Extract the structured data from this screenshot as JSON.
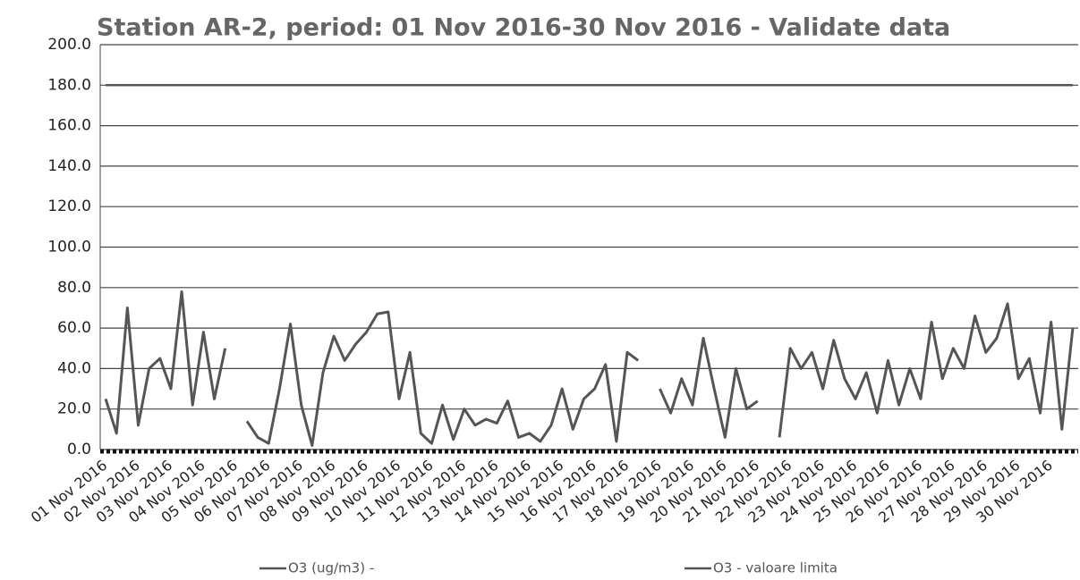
{
  "chart_data": {
    "type": "line",
    "title": "Station AR-2, period: 01 Nov 2016-30 Nov 2016 - Validate data",
    "categories": [
      "01 Nov 2016",
      null,
      null,
      "02 Nov 2016",
      null,
      null,
      "03 Nov 2016",
      null,
      null,
      "04 Nov 2016",
      null,
      null,
      "05 Nov 2016",
      null,
      null,
      "06 Nov 2016",
      null,
      null,
      "07 Nov 2016",
      null,
      null,
      "08 Nov 2016",
      null,
      null,
      "09 Nov 2016",
      null,
      null,
      "10 Nov 2016",
      null,
      null,
      "11 Nov 2016",
      null,
      null,
      "12 Nov 2016",
      null,
      null,
      "13 Nov 2016",
      null,
      null,
      "14 Nov 2016",
      null,
      null,
      "15 Nov 2016",
      null,
      null,
      "16 Nov 2016",
      null,
      null,
      "17 Nov 2016",
      null,
      null,
      "18 Nov 2016",
      null,
      null,
      "19 Nov 2016",
      null,
      null,
      "20 Nov 2016",
      null,
      null,
      "21 Nov 2016",
      null,
      null,
      "22 Nov 2016",
      null,
      null,
      "23 Nov 2016",
      null,
      null,
      "24 Nov 2016",
      null,
      null,
      "25 Nov 2016",
      null,
      null,
      "26 Nov 2016",
      null,
      null,
      "27 Nov 2016",
      null,
      null,
      "28 Nov 2016",
      null,
      null,
      "29 Nov 2016",
      null,
      null,
      "30 Nov 2016",
      null,
      null
    ],
    "series": [
      {
        "name": "O3 (ug/m3) -",
        "color": "#555555",
        "values": [
          25,
          8,
          70,
          12,
          40,
          45,
          30,
          78,
          22,
          58,
          25,
          50,
          null,
          14,
          6,
          3,
          30,
          62,
          22,
          2,
          38,
          56,
          44,
          52,
          58,
          67,
          68,
          25,
          48,
          8,
          3,
          22,
          5,
          20,
          12,
          15,
          13,
          24,
          6,
          8,
          4,
          12,
          30,
          10,
          25,
          30,
          42,
          4,
          48,
          44,
          null,
          30,
          18,
          35,
          22,
          55,
          30,
          6,
          40,
          20,
          24,
          null,
          6,
          50,
          40,
          48,
          30,
          54,
          35,
          25,
          38,
          18,
          44,
          22,
          40,
          25,
          63,
          35,
          50,
          40,
          66,
          48,
          55,
          72,
          35,
          45,
          18,
          63,
          10,
          60
        ]
      },
      {
        "name": "O3 - valoare limita",
        "color": "#555555",
        "values": [
          180,
          180,
          180,
          180,
          180,
          180,
          180,
          180,
          180,
          180,
          180,
          180,
          180,
          180,
          180,
          180,
          180,
          180,
          180,
          180,
          180,
          180,
          180,
          180,
          180,
          180,
          180,
          180,
          180,
          180,
          180,
          180,
          180,
          180,
          180,
          180,
          180,
          180,
          180,
          180,
          180,
          180,
          180,
          180,
          180,
          180,
          180,
          180,
          180,
          180,
          180,
          180,
          180,
          180,
          180,
          180,
          180,
          180,
          180,
          180,
          180,
          180,
          180,
          180,
          180,
          180,
          180,
          180,
          180,
          180,
          180,
          180,
          180,
          180,
          180,
          180,
          180,
          180,
          180,
          180,
          180,
          180,
          180,
          180,
          180,
          180,
          180,
          180,
          180,
          180
        ]
      }
    ],
    "ylim": [
      0,
      200
    ],
    "yticks": [
      {
        "value": 0,
        "label": "0.0"
      },
      {
        "value": 20,
        "label": "20.0"
      },
      {
        "value": 40,
        "label": "40.0"
      },
      {
        "value": 60,
        "label": "60.0"
      },
      {
        "value": 80,
        "label": "80.0"
      },
      {
        "value": 100,
        "label": "100.0"
      },
      {
        "value": 120,
        "label": "120.0"
      },
      {
        "value": 140,
        "label": "140.0"
      },
      {
        "value": 160,
        "label": "160.0"
      },
      {
        "value": 180,
        "label": "180.0"
      },
      {
        "value": 200,
        "label": "200.0"
      }
    ],
    "grid": true
  }
}
